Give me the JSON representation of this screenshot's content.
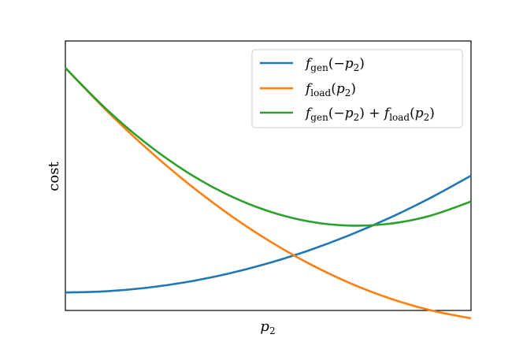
{
  "chart_data": {
    "type": "line",
    "xlabel": "p2",
    "ylabel": "cost",
    "xlim": [
      -1,
      1
    ],
    "ylim": [
      -0.08,
      1.12
    ],
    "grid": false,
    "legend_placement": "top-right",
    "x": [
      -1.0,
      -0.8,
      -0.6,
      -0.4,
      -0.2,
      0.0,
      0.2,
      0.4,
      0.6,
      0.8,
      1.0
    ],
    "series": [
      {
        "name": "f_gen(−p2)",
        "color": "#1f77b4",
        "values": [
          0.0,
          0.0052,
          0.0208,
          0.0468,
          0.0832,
          0.13,
          0.1872,
          0.2548,
          0.3328,
          0.4212,
          0.52
        ]
      },
      {
        "name": "f_load(p2)",
        "color": "#ff7f0e",
        "values": [
          1.0,
          0.8129,
          0.6426,
          0.4891,
          0.3524,
          0.2325,
          0.1294,
          0.0431,
          -0.0264,
          -0.0791,
          -0.115
        ]
      },
      {
        "name": "f_gen(−p2) + f_load(p2)",
        "color": "#2ca02c",
        "values": [
          1.0,
          0.8181,
          0.6634,
          0.5359,
          0.4356,
          0.3625,
          0.3166,
          0.2979,
          0.3064,
          0.3421,
          0.405
        ]
      }
    ],
    "legend": {
      "entries": [
        {
          "base": "f",
          "sub": "gen",
          "rest": "(−p",
          "rest_sub": "2",
          "tail": ")"
        },
        {
          "base": "f",
          "sub": "load",
          "rest": "(p",
          "rest_sub": "2",
          "tail": ")"
        },
        {
          "base": "f",
          "sub": "gen",
          "rest": "(−p",
          "rest_sub": "2",
          "tail": ") + ",
          "base2": "f",
          "sub2": "load",
          "rest2": "(p",
          "rest2_sub": "2",
          "tail2": ")"
        }
      ]
    }
  }
}
